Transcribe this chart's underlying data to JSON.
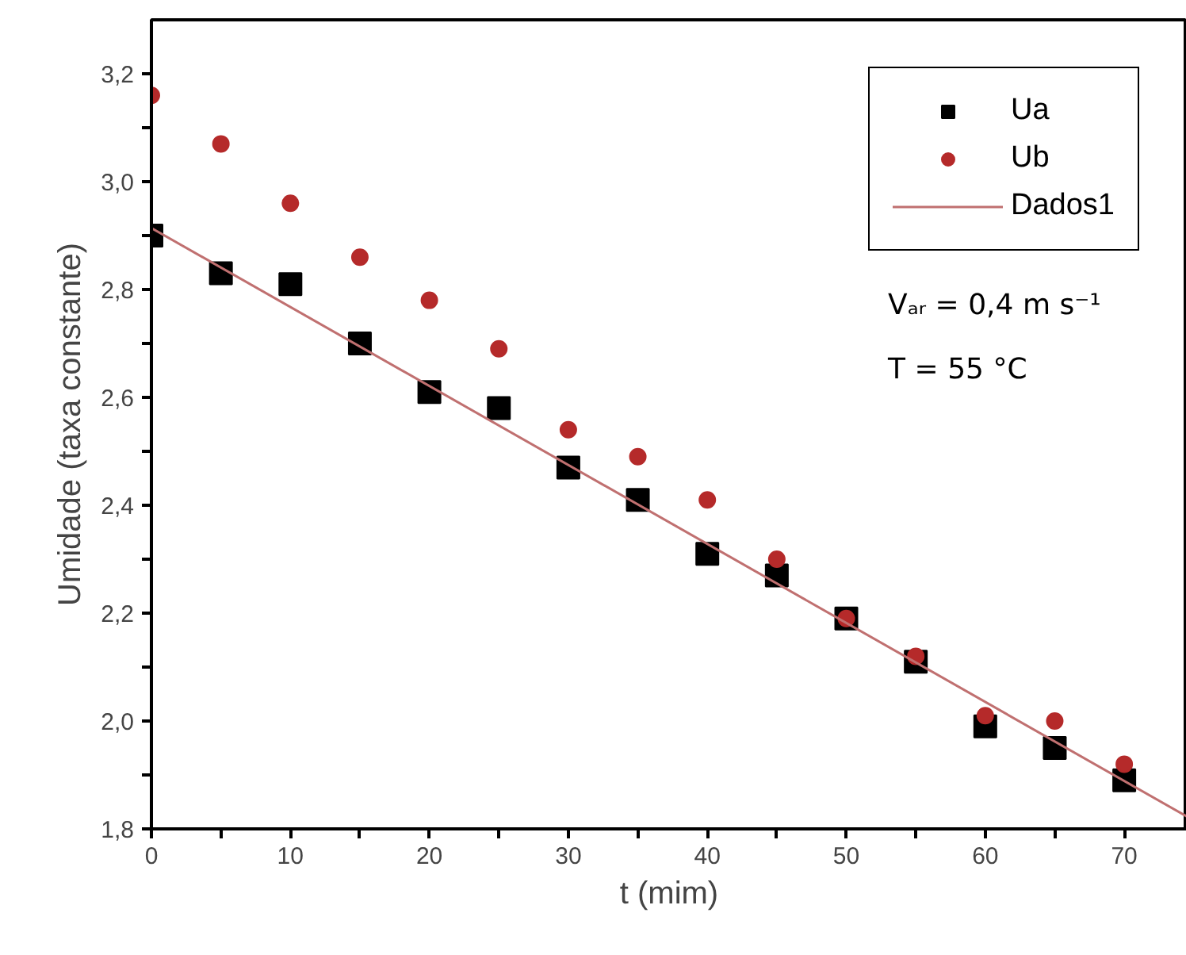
{
  "chart_data": {
    "type": "scatter",
    "xlabel": "t (mim)",
    "ylabel": "Umidade (taxa constante)",
    "x": [
      0,
      5,
      10,
      15,
      20,
      25,
      30,
      35,
      40,
      45,
      50,
      55,
      60,
      65,
      70
    ],
    "series": [
      {
        "name": "Ua",
        "color": "#000000",
        "marker": "square",
        "values": [
          2.9,
          2.83,
          2.81,
          2.7,
          2.61,
          2.58,
          2.47,
          2.41,
          2.31,
          2.27,
          2.19,
          2.11,
          1.99,
          1.95,
          1.89
        ]
      },
      {
        "name": "Ub",
        "color": "#b52a2a",
        "marker": "circle",
        "values": [
          3.16,
          3.07,
          2.96,
          2.86,
          2.78,
          2.69,
          2.54,
          2.49,
          2.41,
          2.3,
          2.19,
          2.12,
          2.01,
          2.0,
          1.92
        ]
      },
      {
        "name": "Dados1",
        "type": "line",
        "color": "#c07070",
        "x": [
          0,
          74.5
        ],
        "values": [
          2.914,
          1.823
        ]
      }
    ],
    "annotations": [
      "Vₐᵣ = 0,4 m s⁻¹",
      "T  = 55 °C"
    ],
    "xlim": [
      0,
      74.5
    ],
    "ylim": [
      1.8,
      3.3
    ],
    "xticks": [
      0,
      {
        "value": 5,
        "label": null
      },
      10,
      {
        "value": 15,
        "label": null
      },
      20,
      {
        "value": 25,
        "label": null
      },
      30,
      {
        "value": 35,
        "label": null
      },
      40,
      {
        "value": 45,
        "label": null
      },
      50,
      {
        "value": 55,
        "label": null
      },
      60,
      {
        "value": 65,
        "label": null
      },
      70
    ],
    "yticks": [
      {
        "value": 1.8,
        "label": "1,8"
      },
      {
        "value": 1.9,
        "label": null
      },
      {
        "value": 2.0,
        "label": "2,0"
      },
      {
        "value": 2.1,
        "label": null
      },
      {
        "value": 2.2,
        "label": "2,2"
      },
      {
        "value": 2.3,
        "label": null
      },
      {
        "value": 2.4,
        "label": "2,4"
      },
      {
        "value": 2.5,
        "label": null
      },
      {
        "value": 2.6,
        "label": "2,6"
      },
      {
        "value": 2.7,
        "label": null
      },
      {
        "value": 2.8,
        "label": "2,8"
      },
      {
        "value": 2.9,
        "label": null
      },
      {
        "value": 3.0,
        "label": "3,0"
      },
      {
        "value": 3.1,
        "label": null
      },
      {
        "value": 3.2,
        "label": "3,2"
      }
    ],
    "grid": false,
    "legend": "top right"
  }
}
